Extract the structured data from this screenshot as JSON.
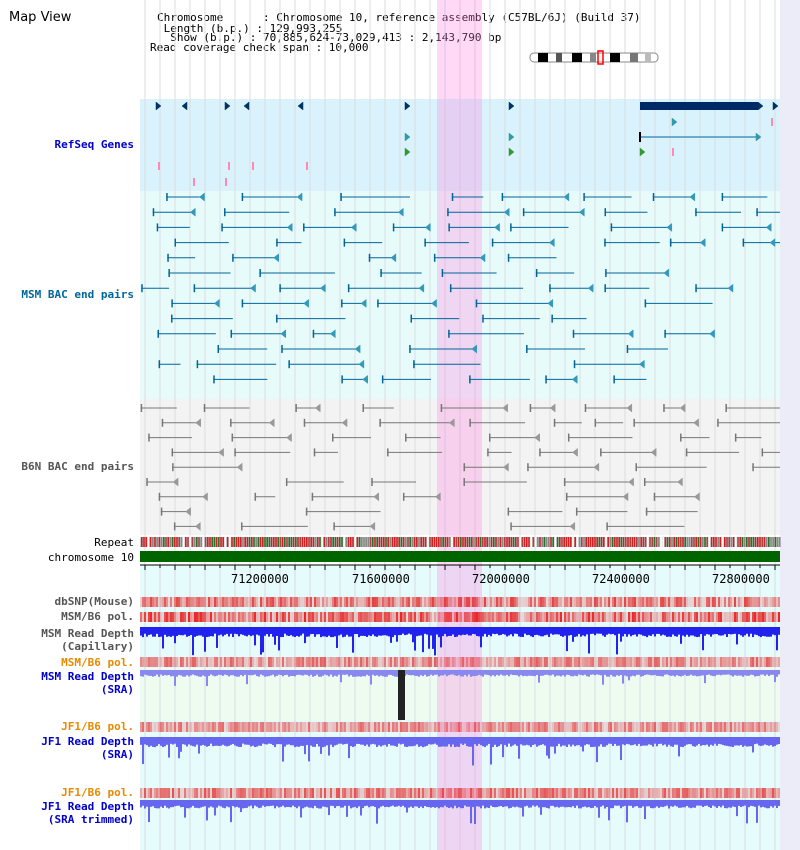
{
  "title": "Map View",
  "info": {
    "chromosome_line": "Chromosome      : Chromosome 10, reference assembly (C57BL/6J) (Build 37)",
    "length_line": " Length (b.p.) : 129,993,255",
    "show_line": "  Show (b.p.) : 70,885,624-73,029,413 : 2,143,790 bp",
    "span_line": "Read coverage check span : 10,000"
  },
  "tracks": {
    "refseq": "RefSeq Genes",
    "msm_bac": "MSM BAC end pairs",
    "b6n_bac": "B6N BAC end pairs",
    "repeat": "Repeat",
    "chromosome": "chromosome 10",
    "dbsnp": "dbSNP(Mouse)",
    "msm_b6_pol_1": "MSM/B6 pol.",
    "msm_depth_cap_1": "MSM Read Depth",
    "msm_depth_cap_2": "(Capillary)",
    "msm_b6_pol_2": "MSM/B6 pol.",
    "msm_depth_sra_1": "MSM Read Depth",
    "msm_depth_sra_2": "(SRA)",
    "jf1_b6_pol_1": "JF1/B6 pol.",
    "jf1_depth_sra_1": "JF1 Read Depth",
    "jf1_depth_sra_2": "(SRA)",
    "jf1_b6_pol_2": "JF1/B6 pol.",
    "jf1_depth_trim_1": "JF1 Read Depth",
    "jf1_depth_trim_2": "(SRA trimmed)"
  },
  "axis": {
    "ticks": [
      "71200000",
      "71600000",
      "72000000",
      "72400000",
      "72800000"
    ]
  },
  "colors": {
    "refseq_label": "#0000cc",
    "msm_label": "#006699",
    "gray_label": "#555555",
    "orange_label": "#e68a00",
    "blue_label": "#0000cc",
    "highlight": "#ff80e0",
    "chromosome_bar": "#006400"
  }
}
